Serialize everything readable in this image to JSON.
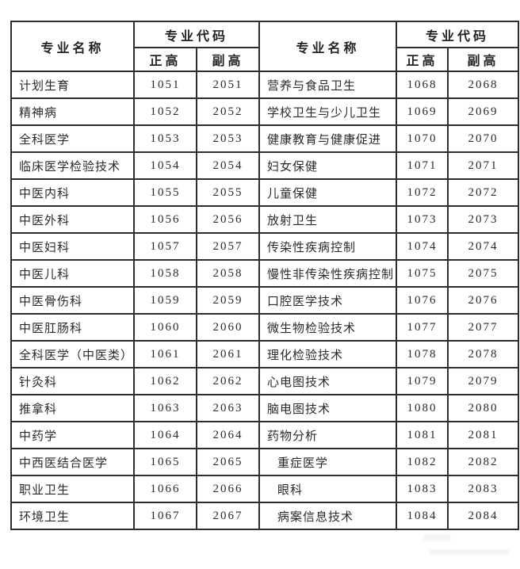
{
  "table": {
    "header": {
      "name_label": "专业名称",
      "code_label": "专业代码",
      "senior_label": "正高",
      "deputy_label": "副高"
    },
    "left_rows": [
      {
        "name": "计划生育",
        "senior": "1051",
        "deputy": "2051"
      },
      {
        "name": "精神病",
        "senior": "1052",
        "deputy": "2052"
      },
      {
        "name": "全科医学",
        "senior": "1053",
        "deputy": "2053"
      },
      {
        "name": "临床医学检验技术",
        "senior": "1054",
        "deputy": "2054"
      },
      {
        "name": "中医内科",
        "senior": "1055",
        "deputy": "2055"
      },
      {
        "name": "中医外科",
        "senior": "1056",
        "deputy": "2056"
      },
      {
        "name": "中医妇科",
        "senior": "1057",
        "deputy": "2057"
      },
      {
        "name": "中医儿科",
        "senior": "1058",
        "deputy": "2058"
      },
      {
        "name": "中医骨伤科",
        "senior": "1059",
        "deputy": "2059"
      },
      {
        "name": "中医肛肠科",
        "senior": "1060",
        "deputy": "2060"
      },
      {
        "name": "全科医学（中医类）",
        "senior": "1061",
        "deputy": "2061"
      },
      {
        "name": "针灸科",
        "senior": "1062",
        "deputy": "2062"
      },
      {
        "name": "推拿科",
        "senior": "1063",
        "deputy": "2063"
      },
      {
        "name": "中药学",
        "senior": "1064",
        "deputy": "2064"
      },
      {
        "name": "中西医结合医学",
        "senior": "1065",
        "deputy": "2065"
      },
      {
        "name": "职业卫生",
        "senior": "1066",
        "deputy": "2066"
      },
      {
        "name": "环境卫生",
        "senior": "1067",
        "deputy": "2067"
      }
    ],
    "right_rows": [
      {
        "name": "营养与食品卫生",
        "senior": "1068",
        "deputy": "2068"
      },
      {
        "name": "学校卫生与少儿卫生",
        "senior": "1069",
        "deputy": "2069"
      },
      {
        "name": "健康教育与健康促进",
        "senior": "1070",
        "deputy": "2070"
      },
      {
        "name": "妇女保健",
        "senior": "1071",
        "deputy": "2071"
      },
      {
        "name": "儿童保健",
        "senior": "1072",
        "deputy": "2072"
      },
      {
        "name": "放射卫生",
        "senior": "1073",
        "deputy": "2073"
      },
      {
        "name": "传染性疾病控制",
        "senior": "1074",
        "deputy": "2074"
      },
      {
        "name": "慢性非传染性疾病控制",
        "senior": "1075",
        "deputy": "2075"
      },
      {
        "name": "口腔医学技术",
        "senior": "1076",
        "deputy": "2076"
      },
      {
        "name": "微生物检验技术",
        "senior": "1077",
        "deputy": "2077"
      },
      {
        "name": "理化检验技术",
        "senior": "1078",
        "deputy": "2078"
      },
      {
        "name": "心电图技术",
        "senior": "1079",
        "deputy": "2079"
      },
      {
        "name": "脑电图技术",
        "senior": "1080",
        "deputy": "2080"
      },
      {
        "name": "药物分析",
        "senior": "1081",
        "deputy": "2081"
      },
      {
        "name": "重症医学",
        "senior": "1082",
        "deputy": "2082",
        "indent": true
      },
      {
        "name": "眼科",
        "senior": "1083",
        "deputy": "2083",
        "indent": true
      },
      {
        "name": "病案信息技术",
        "senior": "1084",
        "deputy": "2084",
        "indent": true
      }
    ],
    "colors": {
      "border": "#2e2e2e",
      "text": "#2a2a2a",
      "background": "#ffffff"
    }
  }
}
